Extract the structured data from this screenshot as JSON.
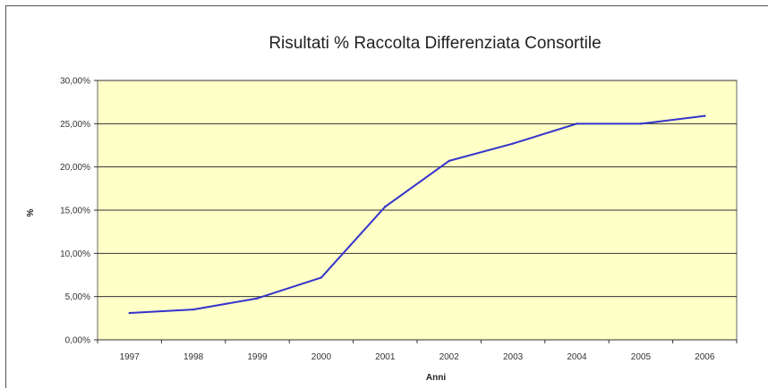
{
  "chart_data": {
    "type": "line",
    "title": "Risultati % Raccolta Differenziata Consortile",
    "xlabel": "Anni",
    "ylabel": "%",
    "categories": [
      "1997",
      "1998",
      "1999",
      "2000",
      "2001",
      "2002",
      "2003",
      "2004",
      "2005",
      "2006"
    ],
    "series": [
      {
        "values": [
          3.1,
          3.5,
          4.8,
          7.2,
          15.4,
          20.7,
          22.7,
          25.0,
          25.0,
          25.9
        ]
      }
    ],
    "ylim": [
      0,
      30
    ],
    "yticks": [
      "0,00%",
      "5,00%",
      "10,00%",
      "15,00%",
      "20,00%",
      "25,00%",
      "30,00%"
    ],
    "grid": true,
    "legend": "none",
    "colors": {
      "plot_background": "#FFFFC8",
      "line": "#3333CC",
      "gridline": "#333333"
    }
  }
}
